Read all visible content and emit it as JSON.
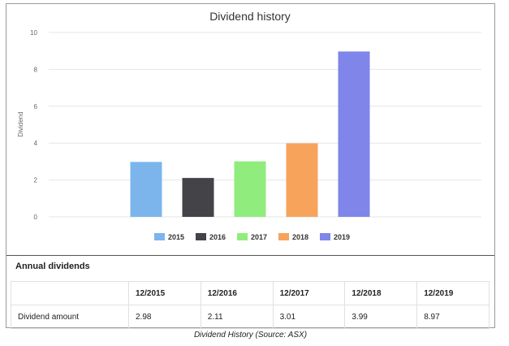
{
  "chart_data": {
    "type": "bar",
    "title": "Dividend history",
    "ylabel": "Dividend",
    "xlabel": "",
    "ylim": [
      0,
      10
    ],
    "yticks": [
      0,
      2,
      4,
      6,
      8,
      10
    ],
    "grid": true,
    "legend_position": "bottom",
    "series": [
      {
        "name": "2015",
        "value": 2.98,
        "color": "#7cb5ec"
      },
      {
        "name": "2016",
        "value": 2.11,
        "color": "#434348"
      },
      {
        "name": "2017",
        "value": 3.01,
        "color": "#90ed7d"
      },
      {
        "name": "2018",
        "value": 3.99,
        "color": "#f7a35c"
      },
      {
        "name": "2019",
        "value": 8.97,
        "color": "#8085e9"
      }
    ]
  },
  "table": {
    "title": "Annual dividends",
    "headers": [
      "",
      "12/2015",
      "12/2016",
      "12/2017",
      "12/2018",
      "12/2019"
    ],
    "row_label": "Dividend amount",
    "values": [
      "2.98",
      "2.11",
      "3.01",
      "3.99",
      "8.97"
    ]
  },
  "caption": "Dividend History (Source: ASX)"
}
